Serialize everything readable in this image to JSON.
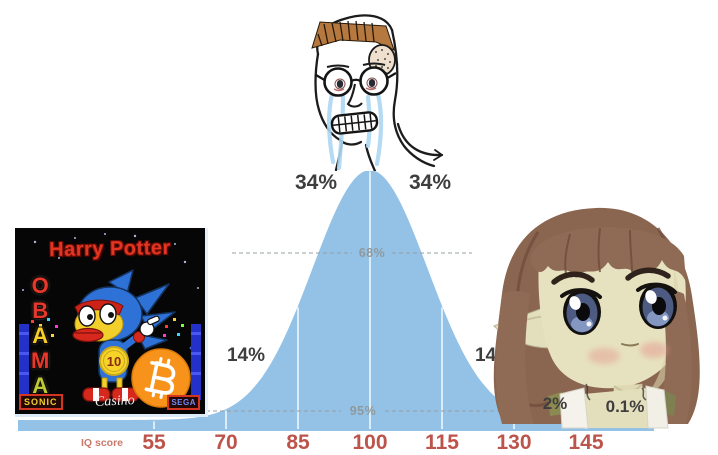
{
  "chart_data": {
    "type": "area",
    "subtype": "normal-distribution-iq-bell-curve",
    "title": "",
    "xlabel": "IQ score",
    "x_ticks": [
      55,
      70,
      85,
      100,
      115,
      130,
      145
    ],
    "mean": 100,
    "std_dev": 15,
    "grid": true,
    "segment_labels": [
      {
        "id": "left-34",
        "text": "34%"
      },
      {
        "id": "right-34",
        "text": "34%"
      },
      {
        "id": "left-14",
        "text": "14%"
      },
      {
        "id": "right-14",
        "text": "14%"
      },
      {
        "id": "right-2",
        "text": "2%"
      },
      {
        "id": "right-0-1",
        "text": "0.1%"
      }
    ],
    "interval_labels": [
      {
        "id": "ci-68",
        "text": "68%"
      },
      {
        "id": "ci-95",
        "text": "95%"
      }
    ],
    "curve_color": "#94c2e7",
    "gridline_color": "#ffffff",
    "tick_label_color": "#bd544b",
    "axis_label_color": "#c9786c",
    "percent_label_color": "#3e3e3e",
    "interval_label_color": "#8f999c"
  },
  "axis": {
    "label": "IQ score",
    "ticks": [
      "55",
      "70",
      "85",
      "100",
      "115",
      "130",
      "145"
    ]
  },
  "memes": {
    "left": {
      "name": "harry-potter-obama-sonic-10-inu",
      "title": "Harry Potter",
      "letters": [
        "O",
        "B",
        "A",
        "M",
        "A"
      ],
      "coin_number": "10",
      "bitcoin_symbol": "₿",
      "bottom_left": "SONIC",
      "bottom_center": "Casino",
      "bottom_right": "SEGA"
    },
    "top": {
      "name": "crying-nerd-wojak"
    },
    "right": {
      "name": "chibi-elf-girl"
    }
  }
}
